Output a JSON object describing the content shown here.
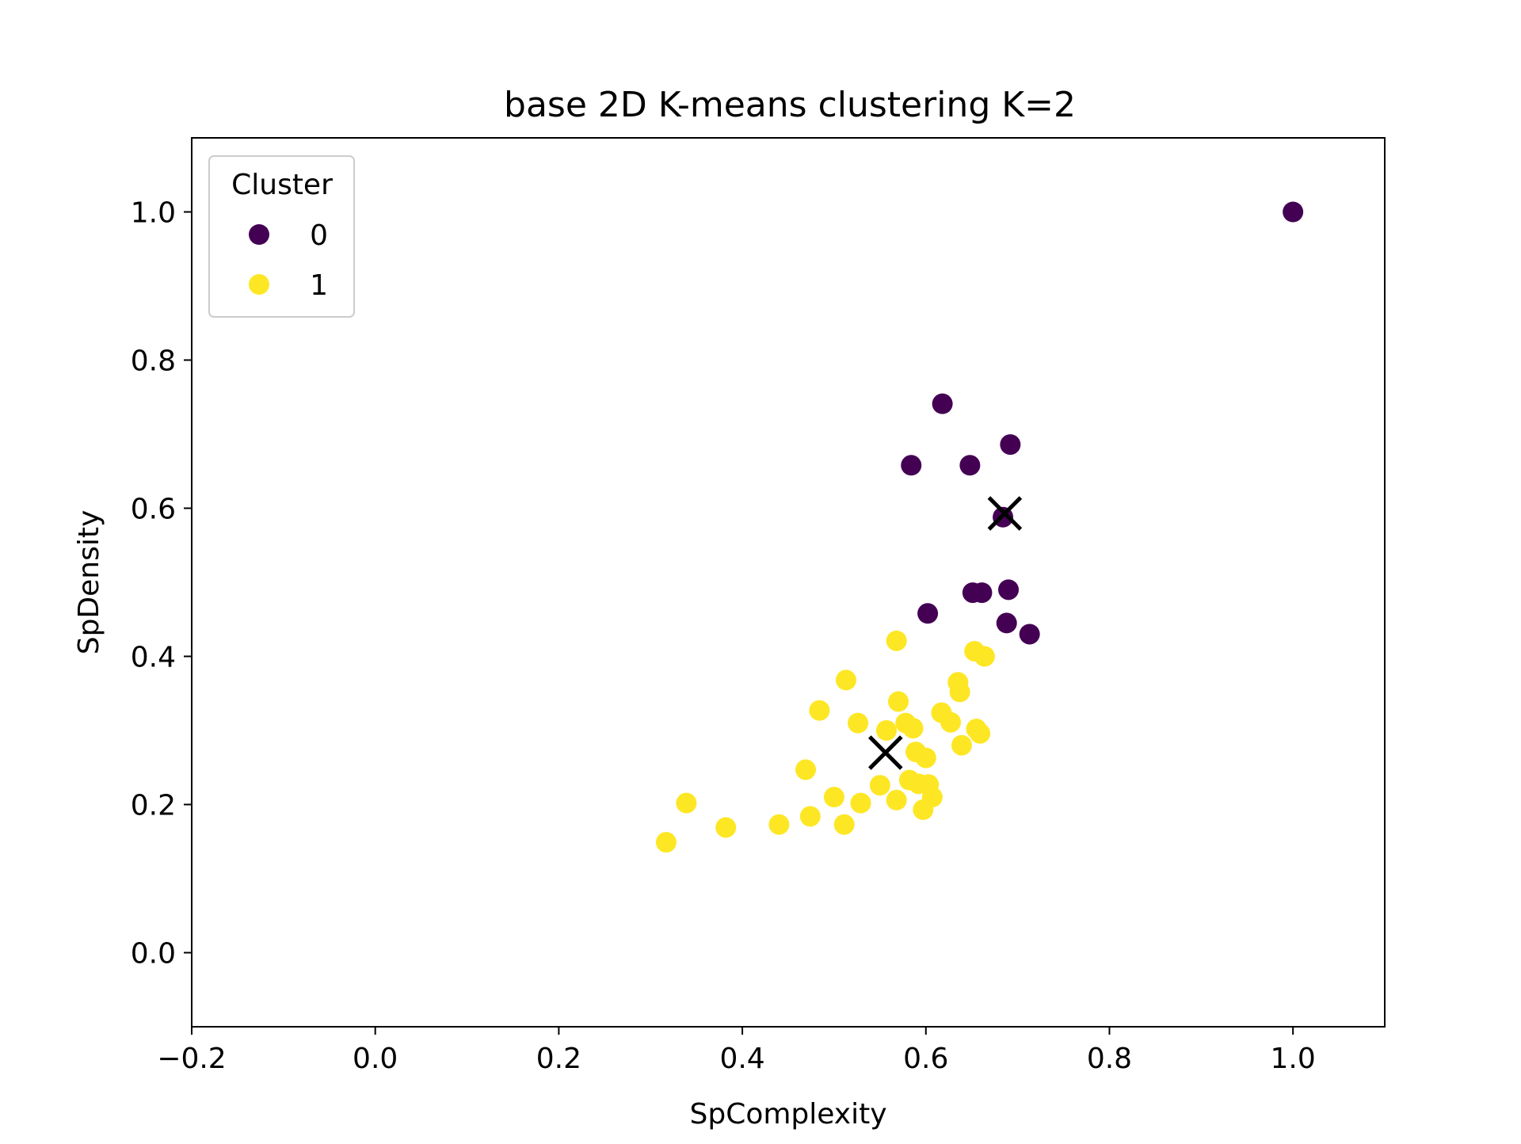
{
  "chart_data": {
    "type": "scatter",
    "title": "base 2D K-means clustering K=2",
    "xlabel": "SpComplexity",
    "ylabel": "SpDensity",
    "xlim": [
      -0.2,
      1.1
    ],
    "ylim": [
      -0.1,
      1.1
    ],
    "xticks": [
      -0.2,
      0.0,
      0.2,
      0.4,
      0.6,
      0.8,
      1.0
    ],
    "xtick_labels": [
      "−0.2",
      "0.0",
      "0.2",
      "0.4",
      "0.6",
      "0.8",
      "1.0"
    ],
    "yticks": [
      0.0,
      0.2,
      0.4,
      0.6,
      0.8,
      1.0
    ],
    "ytick_labels": [
      "0.0",
      "0.2",
      "0.4",
      "0.6",
      "0.8",
      "1.0"
    ],
    "grid": false,
    "legend": {
      "title": "Cluster",
      "placement": "top-left"
    },
    "series": [
      {
        "name": "0",
        "color": "#440154",
        "points": [
          [
            1.0,
            1.0
          ],
          [
            0.618,
            0.741
          ],
          [
            0.584,
            0.658
          ],
          [
            0.648,
            0.658
          ],
          [
            0.692,
            0.686
          ],
          [
            0.684,
            0.588
          ],
          [
            0.651,
            0.486
          ],
          [
            0.661,
            0.486
          ],
          [
            0.69,
            0.49
          ],
          [
            0.602,
            0.458
          ],
          [
            0.688,
            0.445
          ],
          [
            0.713,
            0.43
          ]
        ]
      },
      {
        "name": "1",
        "color": "#fde725",
        "points": [
          [
            0.317,
            0.149
          ],
          [
            0.339,
            0.202
          ],
          [
            0.382,
            0.169
          ],
          [
            0.44,
            0.173
          ],
          [
            0.474,
            0.184
          ],
          [
            0.469,
            0.247
          ],
          [
            0.484,
            0.327
          ],
          [
            0.5,
            0.21
          ],
          [
            0.511,
            0.173
          ],
          [
            0.513,
            0.368
          ],
          [
            0.529,
            0.202
          ],
          [
            0.526,
            0.31
          ],
          [
            0.55,
            0.226
          ],
          [
            0.557,
            0.3
          ],
          [
            0.568,
            0.206
          ],
          [
            0.568,
            0.421
          ],
          [
            0.57,
            0.339
          ],
          [
            0.578,
            0.31
          ],
          [
            0.582,
            0.233
          ],
          [
            0.586,
            0.303
          ],
          [
            0.589,
            0.271
          ],
          [
            0.592,
            0.228
          ],
          [
            0.597,
            0.193
          ],
          [
            0.6,
            0.263
          ],
          [
            0.603,
            0.227
          ],
          [
            0.607,
            0.21
          ],
          [
            0.617,
            0.324
          ],
          [
            0.627,
            0.311
          ],
          [
            0.635,
            0.365
          ],
          [
            0.637,
            0.352
          ],
          [
            0.639,
            0.28
          ],
          [
            0.653,
            0.407
          ],
          [
            0.655,
            0.302
          ],
          [
            0.659,
            0.296
          ],
          [
            0.664,
            0.4
          ]
        ]
      }
    ],
    "centroids": {
      "marker": "x",
      "color": "#000000",
      "points": [
        [
          0.686,
          0.593
        ],
        [
          0.556,
          0.27
        ]
      ]
    }
  }
}
